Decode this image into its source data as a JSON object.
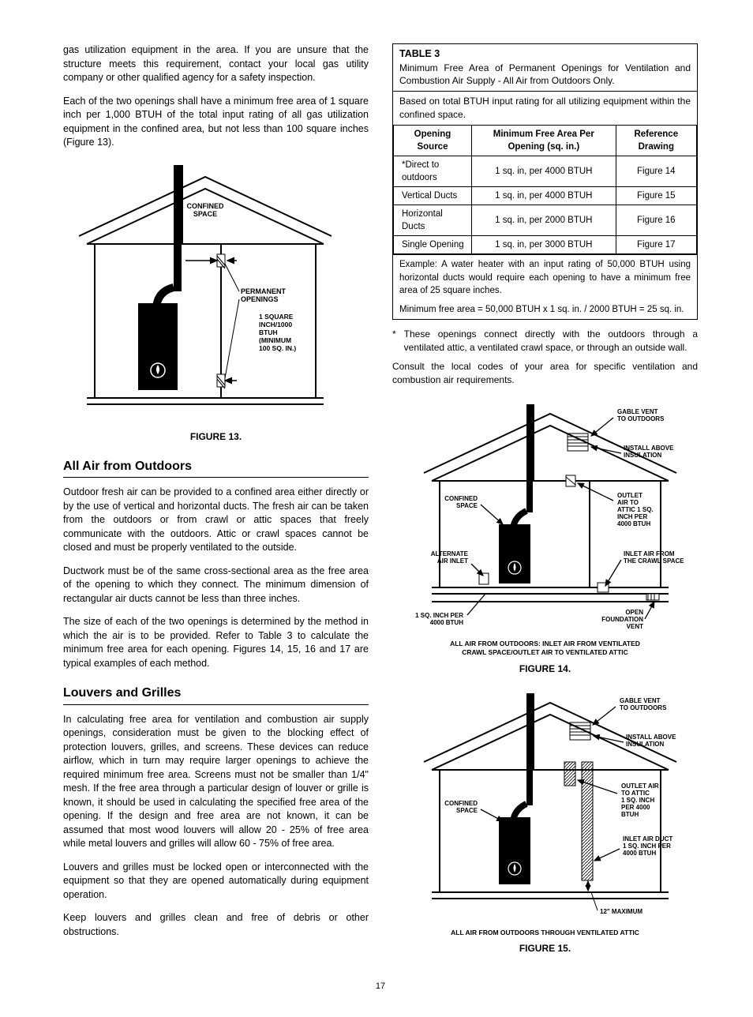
{
  "left": {
    "intro_p1": "gas utilization equipment in the area. If you are unsure that the structure meets this requirement, contact your local gas utility company or other qualified agency for a safety inspection.",
    "intro_p2": "Each of the two openings shall have a minimum free area of 1 square inch per 1,000 BTUH of the total input rating of all gas utilization equipment in the confined area, but not less than 100 square inches (Figure 13).",
    "fig13_caption": "FIGURE 13.",
    "h_outdoors": "All Air from Outdoors",
    "outdoors_p1": "Outdoor fresh air can be provided to a confined area either directly or by the use of vertical and horizontal ducts. The fresh air can be taken from the outdoors or from crawl or attic spaces that freely communicate with the outdoors. Attic or crawl spaces cannot be closed and must be properly ventilated to the outside.",
    "outdoors_p2": "Ductwork must be of the same cross-sectional area as the free area of the opening to which they connect. The minimum dimension of rectangular air ducts cannot be less than three inches.",
    "outdoors_p3": "The size of each of the two openings is determined by the method in which the air is to be provided. Refer to Table 3 to calculate the minimum free area for each opening. Figures 14, 15, 16 and 17 are typical examples of each method.",
    "h_louvers": "Louvers and Grilles",
    "louvers_p1": "In calculating free area for ventilation and combustion air supply openings, consideration must be given to the blocking effect of protection louvers, grilles, and screens. These devices can reduce airflow, which in turn may require larger openings to achieve the required minimum free area. Screens must not be smaller than 1/4\" mesh. If the free area through a particular design of louver or grille is known, it should be used in calculating the specified free area of the opening. If the design and free area are not known, it can be assumed that most wood louvers will allow 20 - 25% of free area while metal louvers and grilles will allow 60 - 75% of free area.",
    "louvers_p2": "Louvers and grilles must be locked open or interconnected with the equipment so that they are opened automatically during equipment operation.",
    "louvers_p3": "Keep louvers and grilles clean and free of debris or other obstructions."
  },
  "right": {
    "table3_title": "TABLE 3",
    "table3_sub1": "Minimum Free Area of Permanent Openings for Ventilation and Combustion Air Supply - All Air from Outdoors Only.",
    "table3_sub2": "Based on total BTUH input rating for all utilizing equipment within the confined space.",
    "table3_headers": [
      "Opening Source",
      "Minimum Free Area Per Opening (sq. in.)",
      "Reference Drawing"
    ],
    "table3_rows": [
      [
        "*Direct to outdoors",
        "1 sq. in, per 4000 BTUH",
        "Figure 14"
      ],
      [
        "Vertical Ducts",
        "1 sq. in, per 4000 BTUH",
        "Figure 15"
      ],
      [
        "Horizontal Ducts",
        "1 sq. in, per 2000 BTUH",
        "Figure 16"
      ],
      [
        "Single Opening",
        "1 sq. in, per 3000 BTUH",
        "Figure 17"
      ]
    ],
    "table3_example": "Example: A water heater with an input rating of 50,000 BTUH using horizontal ducts would require each opening to have a minimum free area of 25 square inches.",
    "table3_calc": "Minimum free area = 50,000 BTUH x 1 sq. in. / 2000 BTUH = 25 sq. in.",
    "footnote": "These openings connect directly with the outdoors through a ventilated attic, a ventilated crawl space, or through an outside wall.",
    "consult": "Consult the local codes of your area for specific ventilation and combustion air requirements.",
    "fig14_caption": "FIGURE 14.",
    "fig15_caption": "FIGURE 15."
  },
  "fig13_labels": {
    "confined": "CONFINED",
    "space": "SPACE",
    "permanent": "PERMANENT",
    "openings": "OPENINGS",
    "l1": "1 SQUARE",
    "l2": "INCH/1000",
    "l3": "BTUH",
    "l4": "(MINIMUM",
    "l5": "100 SQ. IN.)"
  },
  "fig14_labels": {
    "gable1": "GABLE VENT",
    "gable2": "TO OUTDOORS",
    "install1": "INSTALL ABOVE",
    "install2": "INSULATION",
    "confined": "CONFINED",
    "space": "SPACE",
    "outlet1": "OUTLET",
    "outlet2": "AIR TO",
    "outlet3": "ATTIC 1 SQ.",
    "outlet4": "INCH PER",
    "outlet5": "4000 BTUH",
    "alt1": "ALTERNATE",
    "alt2": "AIR INLET",
    "inlet1": "INLET AIR FROM",
    "inlet2": "THE CRAWL SPACE",
    "sq1": "1 SQ. INCH PER",
    "sq2": "4000 BTUH",
    "open1": "OPEN",
    "open2": "FOUNDATION",
    "open3": "VENT",
    "sub1": "ALL AIR FROM OUTDOORS: INLET AIR FROM VENTILATED",
    "sub2": "CRAWL SPACE/OUTLET AIR TO VENTILATED ATTIC"
  },
  "fig15_labels": {
    "gable1": "GABLE VENT",
    "gable2": "TO OUTDOORS",
    "install1": "INSTALL ABOVE",
    "install2": "INSULATION",
    "confined": "CONFINED",
    "space": "SPACE",
    "outlet1": "OUTLET AIR",
    "outlet2": "TO ATTIC",
    "outlet3": "1 SQ. INCH",
    "outlet4": "PER 4000",
    "outlet5": "BTUH",
    "inlet1": "INLET AIR DUCT",
    "inlet2": "1 SQ. INCH PER",
    "inlet3": "4000 BTUH",
    "max": "12\" MAXIMUM",
    "sub": "ALL AIR FROM OUTDOORS THROUGH VENTILATED ATTIC"
  },
  "page_number": "17",
  "colors": {
    "fg": "#000000",
    "bg": "#ffffff"
  }
}
